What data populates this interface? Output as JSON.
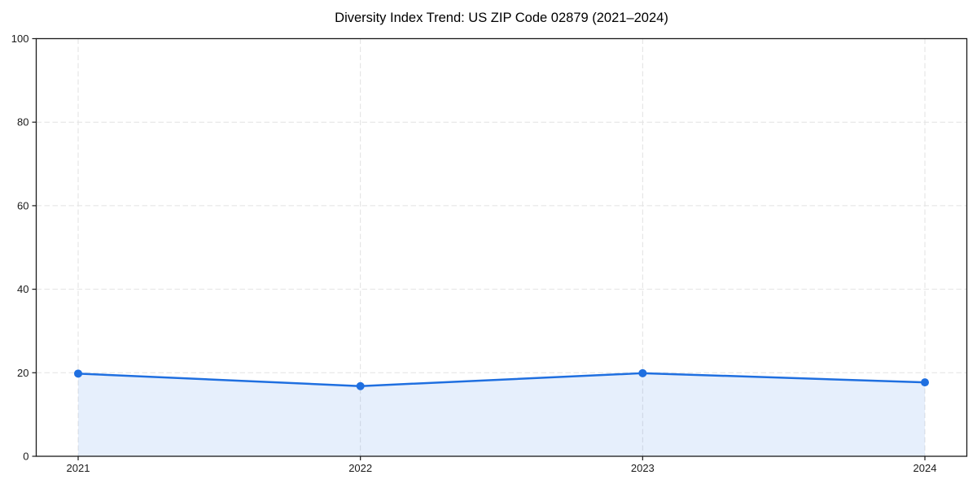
{
  "chart_data": {
    "type": "line",
    "title": "Diversity Index Trend: US ZIP Code 02879 (2021–2024)",
    "x": [
      2021,
      2022,
      2023,
      2024
    ],
    "categories": [
      "2021",
      "2022",
      "2023",
      "2024"
    ],
    "series": [
      {
        "name": "Diversity Index",
        "values": [
          19.8,
          16.8,
          19.9,
          17.7
        ]
      }
    ],
    "xlabel": "",
    "ylabel": "",
    "ylim": [
      0,
      100
    ],
    "yticks": [
      0,
      20,
      40,
      60,
      80,
      100
    ],
    "grid": {
      "show": true,
      "style": "dashed",
      "axes": "both"
    },
    "legend": {
      "show": false
    },
    "area_fill": true,
    "marker": "circle",
    "colors": {
      "line": "#1f6fe0",
      "marker": "#1f6fe0",
      "fill": "#1f6fe0",
      "fill_opacity": 0.11,
      "grid": "#e2e2e2",
      "spine": "#1a1a1a",
      "tick_label": "#1a1a1a",
      "title": "#000000",
      "background": "#ffffff"
    }
  }
}
